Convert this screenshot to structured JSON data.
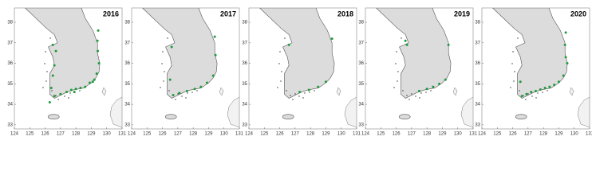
{
  "map": {
    "xlim": [
      124,
      131
    ],
    "ylim": [
      32.8,
      38.7
    ],
    "xticks": [
      124,
      125,
      126,
      127,
      128,
      129,
      130,
      131
    ],
    "yticks": [
      33,
      34,
      35,
      36,
      37,
      38
    ],
    "point_color": "#1e9a3c"
  },
  "panels": [
    {
      "label": "2016",
      "lon": [
        129.45,
        129.4,
        129.42,
        129.5,
        129.35,
        129.2,
        128.9,
        128.6,
        128.3,
        128.0,
        127.7,
        127.4,
        127.0,
        126.6,
        126.4,
        126.5,
        126.6,
        126.7,
        126.5,
        126.3,
        129.1,
        127.9
      ],
      "lat": [
        37.6,
        37.1,
        36.6,
        36.0,
        35.5,
        35.2,
        35.05,
        34.85,
        34.8,
        34.75,
        34.7,
        34.6,
        34.5,
        34.4,
        34.8,
        35.4,
        35.9,
        36.6,
        36.9,
        34.1,
        35.1,
        34.6
      ]
    },
    {
      "label": "2017",
      "lon": [
        129.4,
        129.45,
        129.3,
        128.9,
        128.5,
        128.1,
        127.6,
        127.1,
        126.7,
        126.5,
        126.6
      ],
      "lat": [
        37.3,
        36.4,
        35.4,
        35.05,
        34.85,
        34.75,
        34.65,
        34.55,
        34.45,
        35.2,
        36.8
      ]
    },
    {
      "label": "2018",
      "lon": [
        129.4,
        129.0,
        128.5,
        127.9,
        127.3,
        126.6
      ],
      "lat": [
        37.2,
        35.1,
        34.85,
        34.7,
        34.6,
        36.9
      ]
    },
    {
      "label": "2019",
      "lon": [
        129.4,
        129.2,
        128.8,
        128.4,
        128.0,
        127.5,
        126.7,
        126.6
      ],
      "lat": [
        36.9,
        35.2,
        35.0,
        34.85,
        34.75,
        34.65,
        36.9,
        37.1
      ]
    },
    {
      "label": "2020",
      "lon": [
        129.45,
        129.4,
        129.45,
        129.3,
        129.0,
        128.7,
        128.4,
        128.1,
        127.8,
        127.5,
        127.2,
        126.9,
        126.6,
        126.5,
        129.55
      ],
      "lat": [
        37.5,
        36.9,
        36.3,
        35.4,
        35.1,
        34.95,
        34.85,
        34.8,
        34.72,
        34.65,
        34.6,
        34.5,
        34.4,
        35.1,
        36.0
      ]
    }
  ]
}
